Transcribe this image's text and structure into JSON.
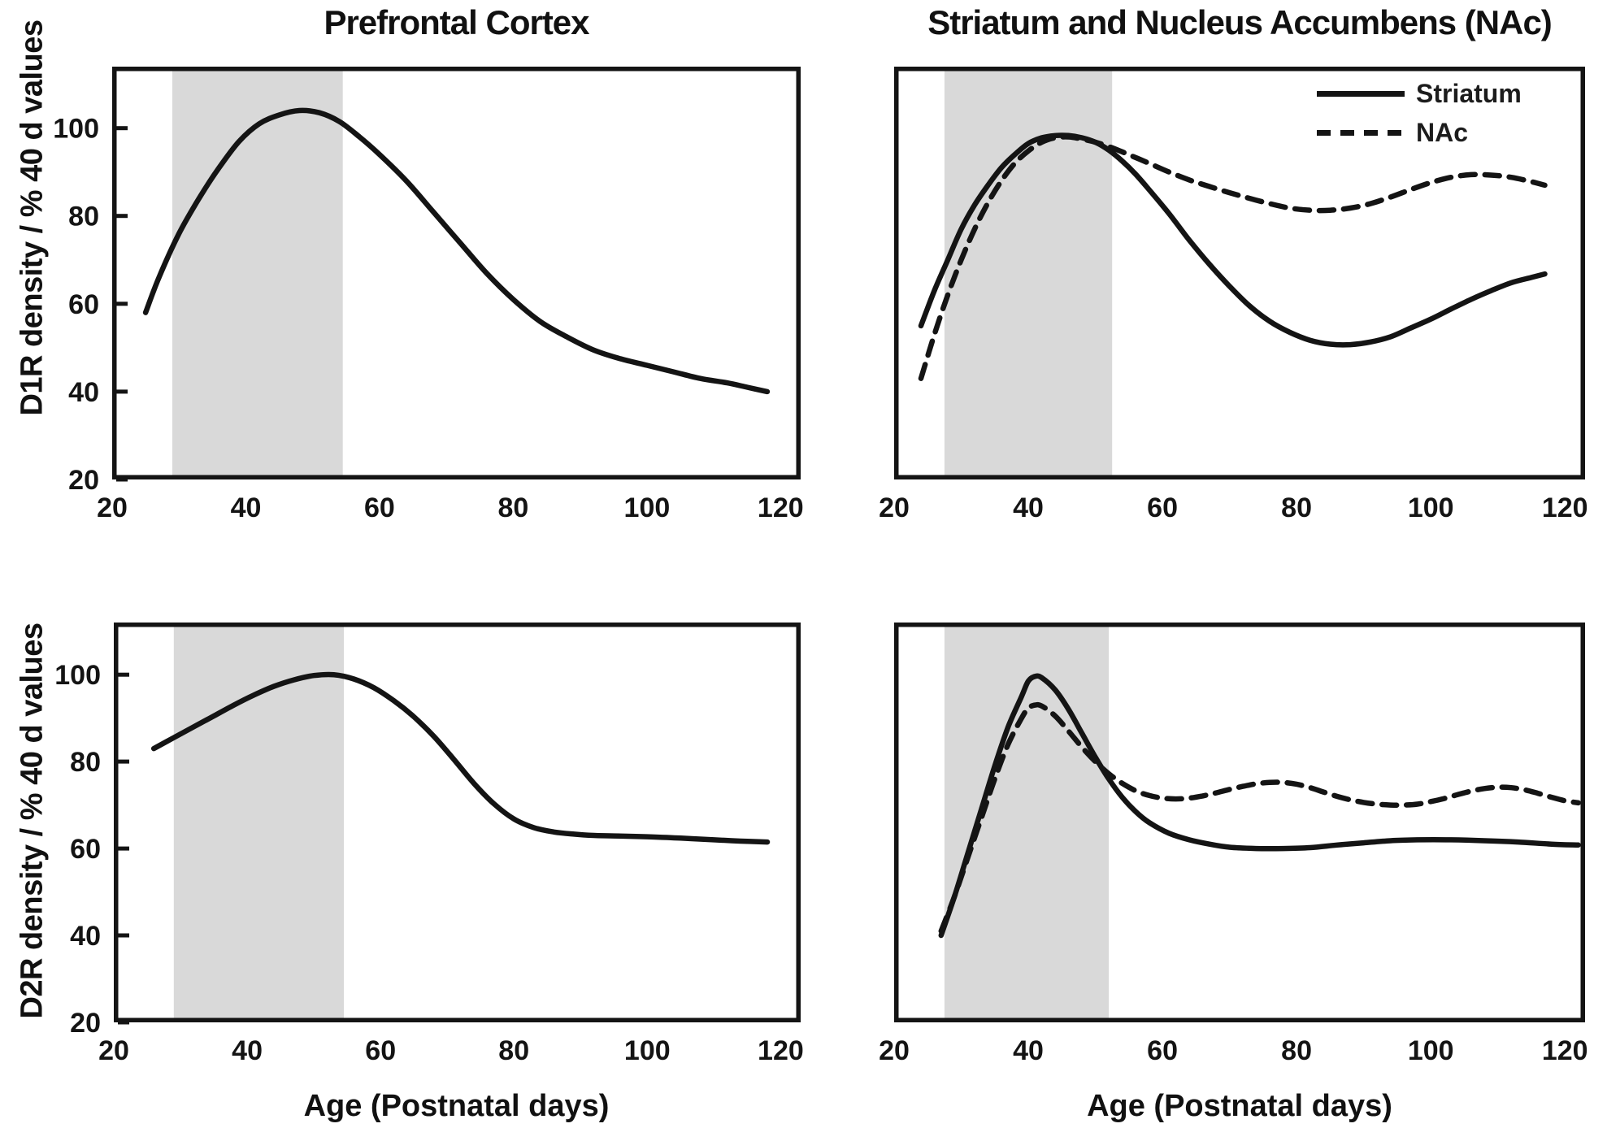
{
  "figure": {
    "colors": {
      "background": "#ffffff",
      "curve": "#141414",
      "band": "#d9d9d9",
      "text": "#111111"
    },
    "legend_position": "top-right of right D1R panel"
  },
  "chart_data": [
    {
      "id": "pfc-d1r",
      "type": "line",
      "title": "Prefrontal Cortex",
      "xlabel": "Age (Postnatal days)",
      "ylabel": "D1R density / % 40 d values",
      "xlim": [
        20,
        123
      ],
      "ylim": [
        20,
        114
      ],
      "xticks": [
        20,
        40,
        60,
        80,
        100,
        120
      ],
      "yticks": [
        100,
        80,
        60,
        40,
        20
      ],
      "ytick_labels_visible": true,
      "grid": false,
      "shaded_region": {
        "x0": 29,
        "x1": 54.5
      },
      "series": [
        {
          "name": "Prefrontal cortex",
          "style": "solid",
          "points": [
            [
              25,
              58
            ],
            [
              27,
              66
            ],
            [
              30,
              76
            ],
            [
              33,
              84
            ],
            [
              36,
              91
            ],
            [
              39,
              97
            ],
            [
              42,
              101
            ],
            [
              45,
              103
            ],
            [
              48,
              104
            ],
            [
              51,
              103.5
            ],
            [
              54,
              101.5
            ],
            [
              57,
              98
            ],
            [
              60,
              94
            ],
            [
              64,
              88
            ],
            [
              68,
              81
            ],
            [
              72,
              74
            ],
            [
              76,
              67
            ],
            [
              80,
              61
            ],
            [
              84,
              56
            ],
            [
              88,
              52.5
            ],
            [
              92,
              49.5
            ],
            [
              96,
              47.5
            ],
            [
              100,
              46
            ],
            [
              104,
              44.5
            ],
            [
              108,
              43
            ],
            [
              112,
              42
            ],
            [
              115,
              41
            ],
            [
              118,
              40
            ]
          ]
        }
      ]
    },
    {
      "id": "striatum-nac-d1r",
      "type": "line",
      "title": "Striatum and Nucleus Accumbens (NAc)",
      "xlabel": "Age (Postnatal days)",
      "ylabel": "D1R density / % 40 d values",
      "xlim": [
        20,
        123
      ],
      "ylim": [
        20,
        114
      ],
      "xticks": [
        20,
        40,
        60,
        80,
        100,
        120
      ],
      "yticks": [
        100,
        80,
        60,
        40,
        20
      ],
      "ytick_labels_visible": false,
      "grid": false,
      "shaded_region": {
        "x0": 27.5,
        "x1": 52.5
      },
      "legend": {
        "position": "top-right",
        "entries": [
          "Striatum",
          "NAc"
        ]
      },
      "series": [
        {
          "name": "Striatum",
          "style": "solid",
          "points": [
            [
              24,
              55
            ],
            [
              26,
              63
            ],
            [
              28,
              70
            ],
            [
              30,
              77
            ],
            [
              32,
              82.5
            ],
            [
              34,
              87
            ],
            [
              36,
              91
            ],
            [
              38,
              94
            ],
            [
              40,
              96.5
            ],
            [
              42,
              97.8
            ],
            [
              44,
              98.3
            ],
            [
              46,
              98.3
            ],
            [
              48,
              97.8
            ],
            [
              50,
              96.8
            ],
            [
              52,
              95
            ],
            [
              54,
              92.5
            ],
            [
              56,
              89.5
            ],
            [
              58,
              86
            ],
            [
              61,
              80.5
            ],
            [
              64,
              74.5
            ],
            [
              67,
              69
            ],
            [
              70,
              64
            ],
            [
              73,
              59.5
            ],
            [
              76,
              56
            ],
            [
              79,
              53.5
            ],
            [
              82,
              51.7
            ],
            [
              85,
              50.8
            ],
            [
              88,
              50.7
            ],
            [
              91,
              51.3
            ],
            [
              94,
              52.5
            ],
            [
              97,
              54.5
            ],
            [
              100,
              56.5
            ],
            [
              103,
              58.8
            ],
            [
              106,
              61
            ],
            [
              109,
              63
            ],
            [
              112,
              64.8
            ],
            [
              115,
              66
            ],
            [
              117,
              66.8
            ]
          ]
        },
        {
          "name": "NAc",
          "style": "dashed",
          "points": [
            [
              24,
              43
            ],
            [
              26,
              53
            ],
            [
              28,
              62
            ],
            [
              30,
              70
            ],
            [
              32,
              77
            ],
            [
              34,
              83
            ],
            [
              36,
              88
            ],
            [
              38,
              92
            ],
            [
              40,
              94.8
            ],
            [
              42,
              96.8
            ],
            [
              44,
              97.8
            ],
            [
              46,
              98
            ],
            [
              48,
              97.5
            ],
            [
              50,
              96.8
            ],
            [
              52,
              95.8
            ],
            [
              54,
              94.6
            ],
            [
              56,
              93.3
            ],
            [
              58,
              92
            ],
            [
              61,
              90
            ],
            [
              64,
              88.2
            ],
            [
              67,
              86.7
            ],
            [
              70,
              85.3
            ],
            [
              73,
              84
            ],
            [
              76,
              82.8
            ],
            [
              79,
              81.8
            ],
            [
              82,
              81.3
            ],
            [
              85,
              81.3
            ],
            [
              88,
              81.8
            ],
            [
              91,
              82.8
            ],
            [
              94,
              84.3
            ],
            [
              97,
              86
            ],
            [
              100,
              87.6
            ],
            [
              103,
              88.8
            ],
            [
              106,
              89.4
            ],
            [
              109,
              89.3
            ],
            [
              112,
              88.8
            ],
            [
              115,
              87.8
            ],
            [
              117,
              87
            ]
          ]
        }
      ]
    },
    {
      "id": "pfc-d2r",
      "type": "line",
      "title": "Prefrontal Cortex",
      "xlabel": "Age (Postnatal days)",
      "ylabel": "D2R density / % 40 d values",
      "xlim": [
        20,
        123
      ],
      "ylim": [
        20,
        112
      ],
      "xticks": [
        20,
        40,
        60,
        80,
        100,
        120
      ],
      "yticks": [
        100,
        80,
        60,
        40,
        20
      ],
      "ytick_labels_visible": true,
      "grid": false,
      "shaded_region": {
        "x0": 29,
        "x1": 54.5
      },
      "series": [
        {
          "name": "Prefrontal cortex",
          "style": "solid",
          "points": [
            [
              26,
              83
            ],
            [
              29,
              85.5
            ],
            [
              32,
              88
            ],
            [
              35,
              90.5
            ],
            [
              38,
              93
            ],
            [
              41,
              95.3
            ],
            [
              44,
              97.3
            ],
            [
              47,
              98.8
            ],
            [
              50,
              99.8
            ],
            [
              53,
              100
            ],
            [
              56,
              99
            ],
            [
              59,
              97
            ],
            [
              62,
              94
            ],
            [
              65,
              90.3
            ],
            [
              68,
              85.8
            ],
            [
              71,
              80.5
            ],
            [
              74,
              75
            ],
            [
              77,
              70.3
            ],
            [
              80,
              66.8
            ],
            [
              83,
              64.8
            ],
            [
              86,
              63.8
            ],
            [
              89,
              63.3
            ],
            [
              92,
              63
            ],
            [
              95,
              62.9
            ],
            [
              100,
              62.7
            ],
            [
              105,
              62.4
            ],
            [
              110,
              62
            ],
            [
              114,
              61.7
            ],
            [
              118,
              61.5
            ]
          ]
        }
      ]
    },
    {
      "id": "striatum-nac-d2r",
      "type": "line",
      "title": "Striatum and Nucleus Accumbens (NAc)",
      "xlabel": "Age (Postnatal days)",
      "ylabel": "D2R density / % 40 d values",
      "xlim": [
        20,
        123
      ],
      "ylim": [
        20,
        112
      ],
      "xticks": [
        20,
        40,
        60,
        80,
        100,
        120
      ],
      "yticks": [
        100,
        80,
        60,
        40,
        20
      ],
      "ytick_labels_visible": false,
      "grid": false,
      "shaded_region": {
        "x0": 27.5,
        "x1": 52
      },
      "series": [
        {
          "name": "Striatum",
          "style": "solid",
          "points": [
            [
              27,
              40
            ],
            [
              29,
              49
            ],
            [
              31,
              59
            ],
            [
              33,
              69
            ],
            [
              35,
              79
            ],
            [
              37,
              88
            ],
            [
              39,
              95
            ],
            [
              40,
              98.5
            ],
            [
              41,
              99.6
            ],
            [
              42,
              99.3
            ],
            [
              44,
              96.5
            ],
            [
              46,
              92
            ],
            [
              48,
              86.5
            ],
            [
              50,
              81
            ],
            [
              52,
              76
            ],
            [
              54,
              71.8
            ],
            [
              56,
              68.5
            ],
            [
              58,
              66
            ],
            [
              61,
              63.5
            ],
            [
              64,
              62
            ],
            [
              67,
              61
            ],
            [
              70,
              60.3
            ],
            [
              74,
              60
            ],
            [
              78,
              60
            ],
            [
              82,
              60.2
            ],
            [
              86,
              60.8
            ],
            [
              90,
              61.3
            ],
            [
              94,
              61.8
            ],
            [
              98,
              62
            ],
            [
              103,
              62
            ],
            [
              108,
              61.8
            ],
            [
              113,
              61.5
            ],
            [
              118,
              61
            ],
            [
              122,
              60.8
            ]
          ]
        },
        {
          "name": "NAc",
          "style": "dashed",
          "points": [
            [
              27,
              41
            ],
            [
              29,
              49
            ],
            [
              31,
              58
            ],
            [
              33,
              67
            ],
            [
              35,
              76
            ],
            [
              37,
              84
            ],
            [
              39,
              90
            ],
            [
              40,
              92.3
            ],
            [
              41,
              93
            ],
            [
              42,
              92.8
            ],
            [
              44,
              90.5
            ],
            [
              46,
              87
            ],
            [
              48,
              83.3
            ],
            [
              50,
              80
            ],
            [
              52,
              77.2
            ],
            [
              54,
              75
            ],
            [
              56,
              73.3
            ],
            [
              58,
              72.2
            ],
            [
              60,
              71.6
            ],
            [
              62,
              71.4
            ],
            [
              64,
              71.6
            ],
            [
              66,
              72.1
            ],
            [
              68,
              72.8
            ],
            [
              70,
              73.6
            ],
            [
              72,
              74.3
            ],
            [
              74,
              74.9
            ],
            [
              76,
              75.2
            ],
            [
              78,
              75.2
            ],
            [
              80,
              74.8
            ],
            [
              82,
              74
            ],
            [
              84,
              73
            ],
            [
              86,
              72
            ],
            [
              88,
              71.2
            ],
            [
              90,
              70.6
            ],
            [
              92,
              70.2
            ],
            [
              94,
              70
            ],
            [
              96,
              70
            ],
            [
              98,
              70.2
            ],
            [
              100,
              70.8
            ],
            [
              102,
              71.5
            ],
            [
              104,
              72.4
            ],
            [
              106,
              73.2
            ],
            [
              108,
              73.8
            ],
            [
              110,
              74.1
            ],
            [
              112,
              74
            ],
            [
              114,
              73.5
            ],
            [
              116,
              72.7
            ],
            [
              118,
              71.8
            ],
            [
              120,
              71
            ],
            [
              122,
              70.5
            ]
          ]
        }
      ]
    }
  ]
}
